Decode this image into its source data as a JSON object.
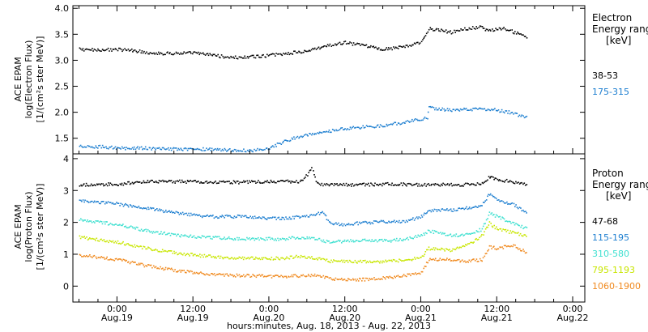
{
  "chart_data": [
    {
      "type": "scatter",
      "ylabel_lines": [
        "ACE EPAM",
        "log(Electron Flux)",
        "[1/(cm²s ster MeV)]"
      ],
      "ylim": [
        1.2,
        4.05
      ],
      "yticks": [
        1.5,
        2.0,
        2.5,
        3.0,
        3.5,
        4.0
      ],
      "ytick_labels": [
        "1.5",
        "2.0",
        "2.5",
        "3.0",
        "3.5",
        "4.0"
      ],
      "legend_lines": [
        "Electron",
        "Energy ranges",
        "[keV]"
      ],
      "series": [
        {
          "name": "38-53",
          "color": "#000000",
          "x": [
            -0.25,
            -0.1,
            0,
            0.1,
            0.2,
            0.3,
            0.4,
            0.5,
            0.6,
            0.7,
            0.8,
            0.9,
            1,
            1.1,
            1.2,
            1.3,
            1.4,
            1.5,
            1.6,
            1.7,
            1.75,
            1.8,
            1.9,
            2,
            2.05,
            2.2,
            2.3,
            2.4,
            2.42,
            2.55,
            2.7
          ],
          "y": [
            3.22,
            3.21,
            3.22,
            3.2,
            3.16,
            3.14,
            3.15,
            3.15,
            3.12,
            3.08,
            3.06,
            3.08,
            3.1,
            3.14,
            3.17,
            3.22,
            3.3,
            3.35,
            3.3,
            3.25,
            3.22,
            3.24,
            3.28,
            3.35,
            3.62,
            3.55,
            3.62,
            3.65,
            3.58,
            3.62,
            3.45
          ]
        },
        {
          "name": "175-315",
          "color": "#1e7fd0",
          "x": [
            -0.25,
            -0.1,
            0,
            0.2,
            0.4,
            0.6,
            0.8,
            0.9,
            1,
            1.1,
            1.2,
            1.3,
            1.4,
            1.5,
            1.6,
            1.7,
            1.8,
            1.9,
            2,
            2.04,
            2.05,
            2.2,
            2.4,
            2.5,
            2.6,
            2.7
          ],
          "y": [
            1.35,
            1.35,
            1.32,
            1.32,
            1.3,
            1.3,
            1.28,
            1.28,
            1.32,
            1.45,
            1.55,
            1.6,
            1.65,
            1.7,
            1.72,
            1.74,
            1.78,
            1.82,
            1.88,
            1.9,
            2.1,
            2.05,
            2.08,
            2.05,
            2.0,
            1.9
          ]
        }
      ]
    },
    {
      "type": "scatter",
      "ylabel_lines": [
        "ACE EPAM",
        "log(Proton Flux)",
        "[1/(cm²s ster MeV)]"
      ],
      "ylim": [
        -0.5,
        4.15
      ],
      "yticks": [
        0,
        1,
        2,
        3,
        4
      ],
      "ytick_labels": [
        "0",
        "1",
        "2",
        "3",
        "4"
      ],
      "legend_lines": [
        "Proton",
        "Energy ranges",
        "[keV]"
      ],
      "x_ticks": [
        0,
        0.5,
        1,
        1.5,
        2,
        2.5,
        3
      ],
      "x_tick_labels": [
        [
          "0:00",
          "Aug.19"
        ],
        [
          "12:00",
          "Aug.19"
        ],
        [
          "0:00",
          "Aug.20"
        ],
        [
          "12:00",
          "Aug.20"
        ],
        [
          "0:00",
          "Aug.21"
        ],
        [
          "12:00",
          "Aug.21"
        ],
        [
          "0:00",
          "Aug.22"
        ]
      ],
      "xlim": [
        -0.29,
        3.08
      ],
      "xlabel": "hours:minutes, Aug. 18, 2013 - Aug. 22, 2013",
      "series": [
        {
          "name": "47-68",
          "color": "#000000",
          "x": [
            -0.25,
            0,
            0.2,
            0.4,
            0.6,
            0.8,
            1,
            1.2,
            1.25,
            1.28,
            1.3,
            1.33,
            1.4,
            1.6,
            1.8,
            2,
            2.1,
            2.3,
            2.4,
            2.45,
            2.5,
            2.6,
            2.7
          ],
          "y": [
            3.2,
            3.22,
            3.3,
            3.3,
            3.28,
            3.28,
            3.3,
            3.3,
            3.5,
            3.75,
            3.4,
            3.2,
            3.2,
            3.2,
            3.22,
            3.2,
            3.2,
            3.2,
            3.25,
            3.45,
            3.35,
            3.3,
            3.2
          ]
        },
        {
          "name": "115-195",
          "color": "#1e7fd0",
          "x": [
            -0.25,
            0,
            0.2,
            0.4,
            0.6,
            0.8,
            1,
            1.1,
            1.2,
            1.3,
            1.35,
            1.4,
            1.5,
            1.6,
            1.8,
            1.9,
            2,
            2.05,
            2.2,
            2.4,
            2.45,
            2.5,
            2.6,
            2.7
          ],
          "y": [
            2.7,
            2.6,
            2.45,
            2.3,
            2.2,
            2.2,
            2.15,
            2.15,
            2.2,
            2.25,
            2.35,
            2.0,
            1.95,
            2.0,
            2.05,
            2.05,
            2.2,
            2.4,
            2.4,
            2.55,
            2.9,
            2.7,
            2.6,
            2.3
          ]
        },
        {
          "name": "310-580",
          "color": "#3fe0d0",
          "x": [
            -0.25,
            0,
            0.2,
            0.4,
            0.6,
            0.8,
            1,
            1.1,
            1.2,
            1.3,
            1.4,
            1.6,
            1.8,
            1.9,
            2,
            2.05,
            2.2,
            2.3,
            2.4,
            2.45,
            2.5,
            2.6,
            2.7
          ],
          "y": [
            2.1,
            1.95,
            1.75,
            1.6,
            1.55,
            1.5,
            1.5,
            1.5,
            1.55,
            1.5,
            1.4,
            1.45,
            1.45,
            1.5,
            1.6,
            1.75,
            1.6,
            1.65,
            1.8,
            2.3,
            2.2,
            2.0,
            1.8
          ]
        },
        {
          "name": "795-1193",
          "color": "#c8e600",
          "x": [
            -0.25,
            0,
            0.2,
            0.4,
            0.6,
            0.8,
            1,
            1.1,
            1.2,
            1.3,
            1.4,
            1.6,
            1.8,
            1.9,
            2,
            2.05,
            2.2,
            2.3,
            2.4,
            2.45,
            2.5,
            2.6,
            2.7
          ],
          "y": [
            1.55,
            1.4,
            1.2,
            1.05,
            0.95,
            0.9,
            0.88,
            0.9,
            0.95,
            0.9,
            0.8,
            0.78,
            0.8,
            0.85,
            0.9,
            1.2,
            1.15,
            1.3,
            1.6,
            2.0,
            1.8,
            1.7,
            1.6
          ]
        },
        {
          "name": "1060-1900",
          "color": "#f08a20",
          "x": [
            -0.25,
            0,
            0.2,
            0.4,
            0.6,
            0.8,
            1,
            1.1,
            1.2,
            1.3,
            1.4,
            1.6,
            1.8,
            1.9,
            2,
            2.05,
            2.2,
            2.3,
            2.4,
            2.45,
            2.5,
            2.6,
            2.7
          ],
          "y": [
            1.0,
            0.85,
            0.65,
            0.5,
            0.4,
            0.35,
            0.32,
            0.32,
            0.35,
            0.35,
            0.25,
            0.22,
            0.28,
            0.35,
            0.45,
            0.85,
            0.85,
            0.8,
            0.85,
            1.25,
            1.2,
            1.3,
            1.05
          ]
        }
      ]
    }
  ]
}
